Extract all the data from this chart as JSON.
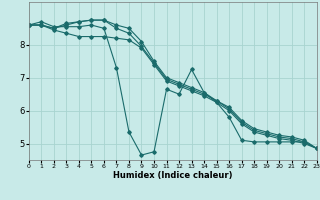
{
  "xlabel": "Humidex (Indice chaleur)",
  "bg_color": "#c8eae8",
  "grid_color": "#a8d4d0",
  "line_color": "#1a6b6b",
  "xlim": [
    0,
    23
  ],
  "ylim": [
    4.5,
    9.3
  ],
  "yticks": [
    5,
    6,
    7,
    8
  ],
  "xticks": [
    0,
    1,
    2,
    3,
    4,
    5,
    6,
    7,
    8,
    9,
    10,
    11,
    12,
    13,
    14,
    15,
    16,
    17,
    18,
    19,
    20,
    21,
    22,
    23
  ],
  "series": [
    [
      8.6,
      8.7,
      8.55,
      8.55,
      8.55,
      8.6,
      8.5,
      7.3,
      5.35,
      4.65,
      4.75,
      6.65,
      6.5,
      7.25,
      6.55,
      6.25,
      5.8,
      5.1,
      5.05,
      5.05,
      5.05,
      5.05,
      5.05,
      4.85
    ],
    [
      8.6,
      8.6,
      8.5,
      8.6,
      8.7,
      8.75,
      8.75,
      8.6,
      8.5,
      8.1,
      7.5,
      7.0,
      6.85,
      6.7,
      6.55,
      6.3,
      6.1,
      5.7,
      5.45,
      5.35,
      5.25,
      5.2,
      5.1,
      4.85
    ],
    [
      8.6,
      8.6,
      8.5,
      8.65,
      8.7,
      8.75,
      8.75,
      8.5,
      8.35,
      7.95,
      7.45,
      6.95,
      6.8,
      6.65,
      6.5,
      6.3,
      6.05,
      5.65,
      5.4,
      5.3,
      5.2,
      5.15,
      5.05,
      4.85
    ],
    [
      8.6,
      8.6,
      8.45,
      8.35,
      8.25,
      8.25,
      8.25,
      8.2,
      8.15,
      7.9,
      7.4,
      6.9,
      6.75,
      6.6,
      6.45,
      6.25,
      6.0,
      5.6,
      5.35,
      5.25,
      5.15,
      5.1,
      5.0,
      4.85
    ]
  ]
}
